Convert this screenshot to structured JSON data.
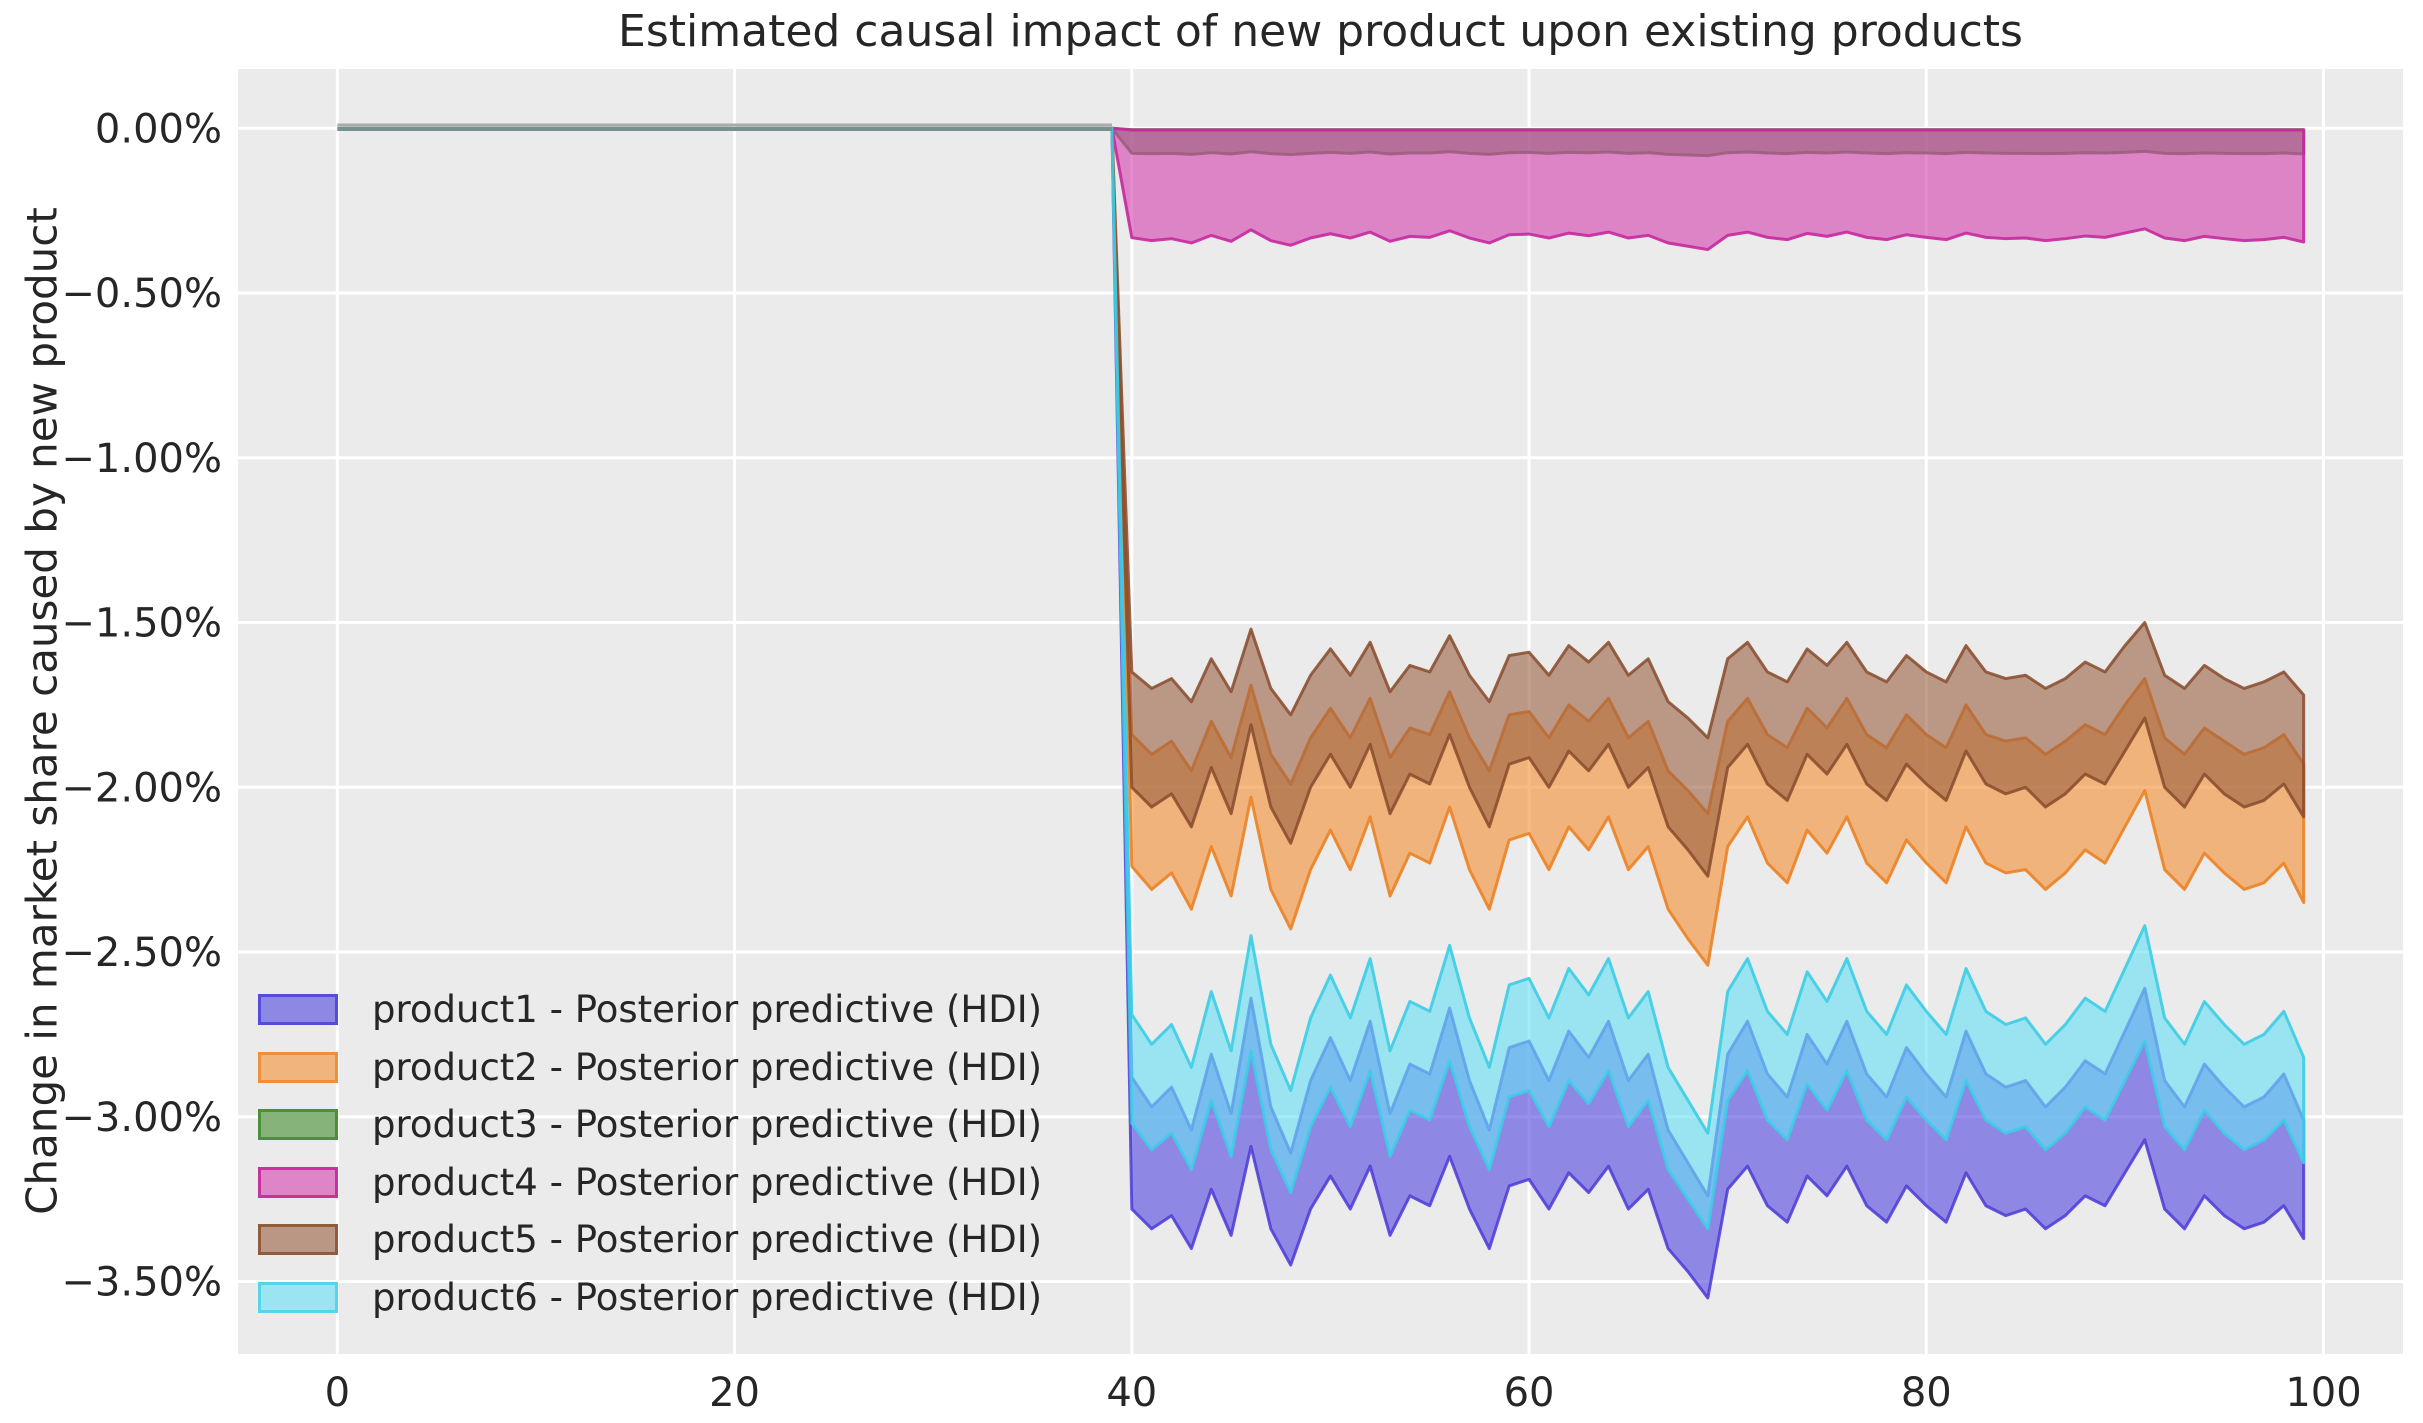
{
  "figure": {
    "title": "Estimated causal impact of new product upon existing products",
    "ylabel": "Change in market share caused by new product"
  },
  "chart_data": {
    "type": "area",
    "title": "Estimated causal impact of new product upon existing products",
    "xlabel": "",
    "ylabel": "Change in market share caused by new product",
    "grid": true,
    "plot_background": "#ebebeb",
    "gridline_color": "#ffffff",
    "text_color": "#262626",
    "legend_position": "lower left",
    "xlim": [
      -5,
      104
    ],
    "ylim": [
      -3.72,
      0.18
    ],
    "x_ticks": [
      0,
      20,
      40,
      60,
      80,
      100
    ],
    "y_ticks": [
      {
        "value": 0.0,
        "label": "0.00%"
      },
      {
        "value": -0.5,
        "label": "−0.50%"
      },
      {
        "value": -1.0,
        "label": "−1.00%"
      },
      {
        "value": -1.5,
        "label": "−1.50%"
      },
      {
        "value": -2.0,
        "label": "−2.00%"
      },
      {
        "value": -2.5,
        "label": "−2.50%"
      },
      {
        "value": -3.0,
        "label": "−3.00%"
      },
      {
        "value": -3.5,
        "label": "−3.50%"
      }
    ],
    "intervention_x": 40,
    "pre_period": {
      "x_start": 0,
      "x_end": 39,
      "value": 0,
      "line_color": "#76918e",
      "line_highlight": "#ababab"
    },
    "units": "percent change in market share",
    "series": [
      {
        "product": "product1",
        "name": "product1 - Posterior predictive (HDI)",
        "fill": "rgba(85,75,225,0.62)",
        "edge": "rgba(75,58,215,0.85)",
        "legend_fill": "#8e88e5",
        "legend_edge": "#564cdb",
        "x_start": 40,
        "hdi_upper": [
          -2.88,
          -2.97,
          -2.91,
          -3.04,
          -2.81,
          -2.99,
          -2.64,
          -2.97,
          -3.11,
          -2.89,
          -2.76,
          -2.89,
          -2.71,
          -2.99,
          -2.84,
          -2.87,
          -2.67,
          -2.89,
          -3.04,
          -2.79,
          -2.77,
          -2.89,
          -2.74,
          -2.82,
          -2.71,
          -2.89,
          -2.81,
          -3.04,
          -3.14,
          -3.24,
          -2.81,
          -2.71,
          -2.87,
          -2.94,
          -2.75,
          -2.84,
          -2.71,
          -2.87,
          -2.94,
          -2.79,
          -2.87,
          -2.94,
          -2.74,
          -2.87,
          -2.91,
          -2.89,
          -2.97,
          -2.91,
          -2.83,
          -2.87,
          -2.74,
          -2.61,
          -2.89,
          -2.97,
          -2.84,
          -2.91,
          -2.97,
          -2.94,
          -2.87,
          -3.01
        ],
        "hdi_lower": [
          -3.28,
          -3.34,
          -3.3,
          -3.4,
          -3.22,
          -3.36,
          -3.09,
          -3.34,
          -3.45,
          -3.28,
          -3.18,
          -3.28,
          -3.15,
          -3.36,
          -3.24,
          -3.27,
          -3.12,
          -3.28,
          -3.4,
          -3.21,
          -3.19,
          -3.28,
          -3.17,
          -3.23,
          -3.15,
          -3.28,
          -3.22,
          -3.4,
          -3.47,
          -3.55,
          -3.22,
          -3.15,
          -3.27,
          -3.32,
          -3.18,
          -3.24,
          -3.15,
          -3.27,
          -3.32,
          -3.21,
          -3.27,
          -3.32,
          -3.17,
          -3.27,
          -3.3,
          -3.28,
          -3.34,
          -3.3,
          -3.24,
          -3.27,
          -3.17,
          -3.07,
          -3.28,
          -3.34,
          -3.24,
          -3.3,
          -3.34,
          -3.32,
          -3.27,
          -3.37
        ]
      },
      {
        "product": "product2",
        "name": "product2 - Posterior predictive (HDI)",
        "fill": "rgba(243,146,55,0.62)",
        "edge": "rgba(236,130,35,0.9)",
        "legend_fill": "#f1b47d",
        "legend_edge": "#ee8f3c",
        "x_start": 40,
        "hdi_upper": [
          -1.84,
          -1.9,
          -1.86,
          -1.95,
          -1.8,
          -1.91,
          -1.69,
          -1.9,
          -1.99,
          -1.85,
          -1.76,
          -1.85,
          -1.73,
          -1.91,
          -1.82,
          -1.84,
          -1.71,
          -1.85,
          -1.95,
          -1.78,
          -1.77,
          -1.85,
          -1.75,
          -1.8,
          -1.73,
          -1.85,
          -1.8,
          -1.95,
          -2.01,
          -2.08,
          -1.8,
          -1.73,
          -1.84,
          -1.88,
          -1.76,
          -1.82,
          -1.73,
          -1.84,
          -1.88,
          -1.78,
          -1.84,
          -1.88,
          -1.75,
          -1.84,
          -1.86,
          -1.85,
          -1.9,
          -1.86,
          -1.81,
          -1.84,
          -1.75,
          -1.67,
          -1.85,
          -1.9,
          -1.82,
          -1.86,
          -1.9,
          -1.88,
          -1.84,
          -1.93
        ],
        "hdi_lower": [
          -2.24,
          -2.31,
          -2.26,
          -2.37,
          -2.18,
          -2.33,
          -2.03,
          -2.31,
          -2.43,
          -2.25,
          -2.13,
          -2.25,
          -2.09,
          -2.33,
          -2.2,
          -2.23,
          -2.06,
          -2.25,
          -2.37,
          -2.16,
          -2.14,
          -2.25,
          -2.12,
          -2.19,
          -2.09,
          -2.25,
          -2.18,
          -2.37,
          -2.46,
          -2.54,
          -2.18,
          -2.09,
          -2.23,
          -2.29,
          -2.13,
          -2.2,
          -2.09,
          -2.23,
          -2.29,
          -2.16,
          -2.23,
          -2.29,
          -2.12,
          -2.23,
          -2.26,
          -2.25,
          -2.31,
          -2.26,
          -2.19,
          -2.23,
          -2.12,
          -2.01,
          -2.25,
          -2.31,
          -2.2,
          -2.26,
          -2.31,
          -2.29,
          -2.23,
          -2.35
        ]
      },
      {
        "product": "product3",
        "name": "product3 - Posterior predictive (HDI)",
        "fill": "rgba(80,150,60,0.65)",
        "edge": "rgba(62,130,45,0.85)",
        "legend_fill": "#86b379",
        "legend_edge": "#4e8f38",
        "x_start": 40,
        "hdi_upper": -0.004,
        "hdi_lower": [
          -0.076,
          -0.077,
          -0.076,
          -0.079,
          -0.074,
          -0.078,
          -0.071,
          -0.077,
          -0.08,
          -0.076,
          -0.073,
          -0.076,
          -0.072,
          -0.078,
          -0.075,
          -0.075,
          -0.071,
          -0.076,
          -0.079,
          -0.074,
          -0.073,
          -0.076,
          -0.073,
          -0.074,
          -0.072,
          -0.076,
          -0.074,
          -0.079,
          -0.081,
          -0.083,
          -0.074,
          -0.072,
          -0.075,
          -0.077,
          -0.073,
          -0.075,
          -0.072,
          -0.075,
          -0.077,
          -0.074,
          -0.075,
          -0.077,
          -0.073,
          -0.075,
          -0.076,
          -0.076,
          -0.077,
          -0.076,
          -0.074,
          -0.075,
          -0.073,
          -0.07,
          -0.076,
          -0.077,
          -0.075,
          -0.076,
          -0.077,
          -0.077,
          -0.075,
          -0.078
        ]
      },
      {
        "product": "product4",
        "name": "product4 - Posterior predictive (HDI)",
        "fill": "rgba(212,70,175,0.62)",
        "edge": "rgba(198,40,158,0.9)",
        "legend_fill": "#dd85c6",
        "legend_edge": "#c8329f",
        "x_start": 40,
        "hdi_upper": -0.005,
        "hdi_lower": [
          -0.332,
          -0.341,
          -0.335,
          -0.348,
          -0.325,
          -0.343,
          -0.308,
          -0.341,
          -0.355,
          -0.333,
          -0.32,
          -0.333,
          -0.315,
          -0.343,
          -0.328,
          -0.331,
          -0.311,
          -0.333,
          -0.348,
          -0.323,
          -0.321,
          -0.333,
          -0.318,
          -0.326,
          -0.315,
          -0.333,
          -0.325,
          -0.348,
          -0.358,
          -0.368,
          -0.325,
          -0.315,
          -0.331,
          -0.338,
          -0.319,
          -0.328,
          -0.315,
          -0.331,
          -0.338,
          -0.323,
          -0.331,
          -0.338,
          -0.318,
          -0.331,
          -0.335,
          -0.333,
          -0.341,
          -0.335,
          -0.327,
          -0.331,
          -0.318,
          -0.305,
          -0.333,
          -0.341,
          -0.328,
          -0.335,
          -0.341,
          -0.338,
          -0.331,
          -0.345
        ]
      },
      {
        "product": "product5",
        "name": "product5 - Posterior predictive (HDI)",
        "fill": "rgba(155,95,65,0.60)",
        "edge": "rgba(135,75,45,0.85)",
        "legend_fill": "#ba9785",
        "legend_edge": "#8f5c3c",
        "x_start": 40,
        "hdi_upper": [
          -1.65,
          -1.7,
          -1.67,
          -1.74,
          -1.61,
          -1.71,
          -1.52,
          -1.7,
          -1.78,
          -1.66,
          -1.58,
          -1.66,
          -1.56,
          -1.71,
          -1.63,
          -1.65,
          -1.54,
          -1.66,
          -1.74,
          -1.6,
          -1.59,
          -1.66,
          -1.57,
          -1.62,
          -1.56,
          -1.66,
          -1.61,
          -1.74,
          -1.79,
          -1.85,
          -1.61,
          -1.56,
          -1.65,
          -1.68,
          -1.58,
          -1.63,
          -1.56,
          -1.65,
          -1.68,
          -1.6,
          -1.65,
          -1.68,
          -1.57,
          -1.65,
          -1.67,
          -1.66,
          -1.7,
          -1.67,
          -1.62,
          -1.65,
          -1.57,
          -1.5,
          -1.66,
          -1.7,
          -1.63,
          -1.67,
          -1.7,
          -1.68,
          -1.65,
          -1.72
        ],
        "hdi_lower": [
          -2.0,
          -2.06,
          -2.02,
          -2.12,
          -1.94,
          -2.08,
          -1.81,
          -2.06,
          -2.17,
          -2.0,
          -1.9,
          -2.0,
          -1.87,
          -2.08,
          -1.96,
          -1.99,
          -1.84,
          -2.0,
          -2.12,
          -1.93,
          -1.91,
          -2.0,
          -1.89,
          -1.95,
          -1.87,
          -2.0,
          -1.94,
          -2.12,
          -2.19,
          -2.27,
          -1.94,
          -1.87,
          -1.99,
          -2.04,
          -1.9,
          -1.96,
          -1.87,
          -1.99,
          -2.04,
          -1.93,
          -1.99,
          -2.04,
          -1.89,
          -1.99,
          -2.02,
          -2.0,
          -2.06,
          -2.02,
          -1.96,
          -1.99,
          -1.89,
          -1.79,
          -2.0,
          -2.06,
          -1.96,
          -2.02,
          -2.06,
          -2.04,
          -1.99,
          -2.09
        ]
      },
      {
        "product": "product6",
        "name": "product6 - Posterior predictive (HDI)",
        "fill": "rgba(105,225,245,0.62)",
        "edge": "rgba(60,205,230,0.9)",
        "legend_fill": "#9ae5f1",
        "legend_edge": "#55d5e8",
        "x_start": 40,
        "hdi_upper": [
          -2.69,
          -2.78,
          -2.72,
          -2.85,
          -2.62,
          -2.8,
          -2.45,
          -2.78,
          -2.92,
          -2.7,
          -2.57,
          -2.7,
          -2.52,
          -2.8,
          -2.65,
          -2.68,
          -2.48,
          -2.7,
          -2.85,
          -2.6,
          -2.58,
          -2.7,
          -2.55,
          -2.63,
          -2.52,
          -2.7,
          -2.62,
          -2.85,
          -2.95,
          -3.05,
          -2.62,
          -2.52,
          -2.68,
          -2.75,
          -2.56,
          -2.65,
          -2.52,
          -2.68,
          -2.75,
          -2.6,
          -2.68,
          -2.75,
          -2.55,
          -2.68,
          -2.72,
          -2.7,
          -2.78,
          -2.72,
          -2.64,
          -2.68,
          -2.55,
          -2.42,
          -2.7,
          -2.78,
          -2.65,
          -2.72,
          -2.78,
          -2.75,
          -2.68,
          -2.82
        ],
        "hdi_lower": [
          -3.02,
          -3.1,
          -3.05,
          -3.16,
          -2.95,
          -3.12,
          -2.8,
          -3.1,
          -3.23,
          -3.03,
          -2.91,
          -3.03,
          -2.86,
          -3.12,
          -2.98,
          -3.01,
          -2.83,
          -3.03,
          -3.16,
          -2.94,
          -2.92,
          -3.03,
          -2.89,
          -2.96,
          -2.86,
          -3.03,
          -2.95,
          -3.16,
          -3.25,
          -3.34,
          -2.95,
          -2.86,
          -3.01,
          -3.07,
          -2.9,
          -2.98,
          -2.86,
          -3.01,
          -3.07,
          -2.94,
          -3.01,
          -3.07,
          -2.89,
          -3.01,
          -3.05,
          -3.03,
          -3.1,
          -3.05,
          -2.97,
          -3.01,
          -2.89,
          -2.77,
          -3.03,
          -3.1,
          -2.98,
          -3.05,
          -3.1,
          -3.07,
          -3.01,
          -3.14
        ]
      }
    ]
  }
}
